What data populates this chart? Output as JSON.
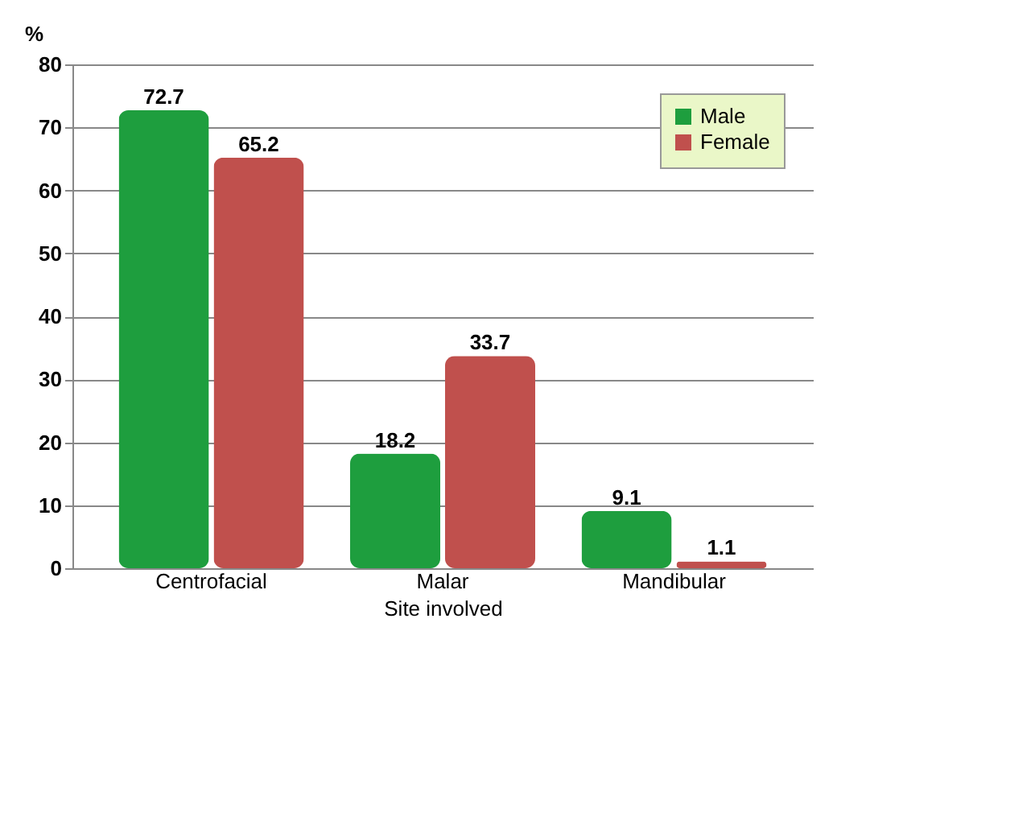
{
  "chart_data": {
    "type": "bar",
    "categories": [
      "Centrofacial",
      "Malar",
      "Mandibular"
    ],
    "series": [
      {
        "name": "Male",
        "color": "#1e9e3e",
        "values": [
          72.7,
          18.2,
          9.1
        ]
      },
      {
        "name": "Female",
        "color": "#c0504d",
        "values": [
          65.2,
          33.7,
          1.1
        ]
      }
    ],
    "ylabel": "%",
    "xlabel": "Site involved",
    "ylim": [
      0,
      80
    ],
    "yticks": [
      0,
      10,
      20,
      30,
      40,
      50,
      60,
      70,
      80
    ],
    "grid": "y",
    "legend": "top right",
    "data_labels": true
  }
}
